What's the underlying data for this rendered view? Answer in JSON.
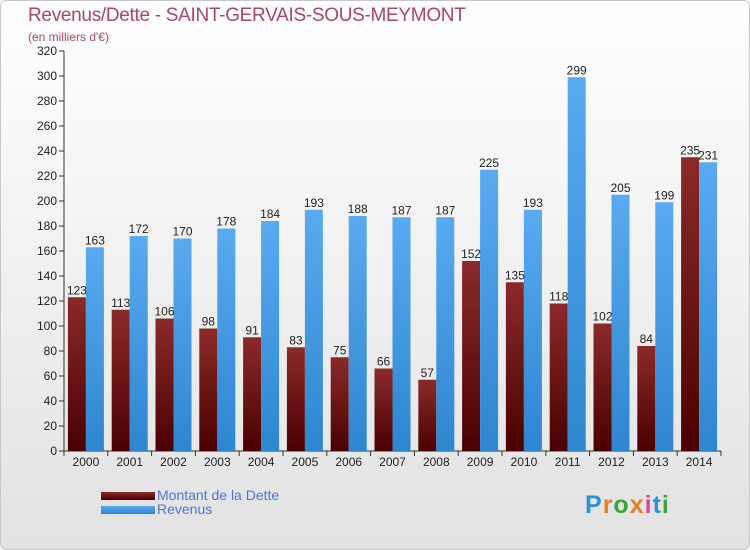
{
  "title": "Revenus/Dette - SAINT-GERVAIS-SOUS-MEYMONT",
  "subtitle": "(en milliers d'€)",
  "colors": {
    "dette_top": "#8b2a2a",
    "dette_bottom": "#4a0000",
    "revenus_top": "#5aaaf0",
    "revenus_bottom": "#2e86cf",
    "title": "#a8456b",
    "legend_text": "#5a6edc"
  },
  "legend": {
    "dette_label": "Montant de la Dette",
    "revenus_label": "Revenus"
  },
  "logo": {
    "letters": [
      "P",
      "r",
      "o",
      "x",
      "i",
      "t",
      "i"
    ]
  },
  "chart_data": {
    "type": "bar",
    "title": "Revenus/Dette - SAINT-GERVAIS-SOUS-MEYMONT",
    "subtitle": "(en milliers d'€)",
    "categories": [
      "2000",
      "2001",
      "2002",
      "2003",
      "2004",
      "2005",
      "2006",
      "2007",
      "2008",
      "2009",
      "2010",
      "2011",
      "2012",
      "2013",
      "2014"
    ],
    "series": [
      {
        "name": "Montant de la Dette",
        "values": [
          123,
          113,
          106,
          98,
          91,
          83,
          75,
          66,
          57,
          152,
          135,
          118,
          102,
          84,
          235
        ]
      },
      {
        "name": "Revenus",
        "values": [
          163,
          172,
          170,
          178,
          184,
          193,
          188,
          187,
          187,
          225,
          193,
          299,
          205,
          199,
          231
        ]
      }
    ],
    "ylim": [
      0,
      320
    ],
    "yticks": [
      0,
      20,
      40,
      60,
      80,
      100,
      120,
      140,
      160,
      180,
      200,
      220,
      240,
      260,
      280,
      300,
      320
    ],
    "grid": false,
    "legend_position": "bottom-left"
  }
}
